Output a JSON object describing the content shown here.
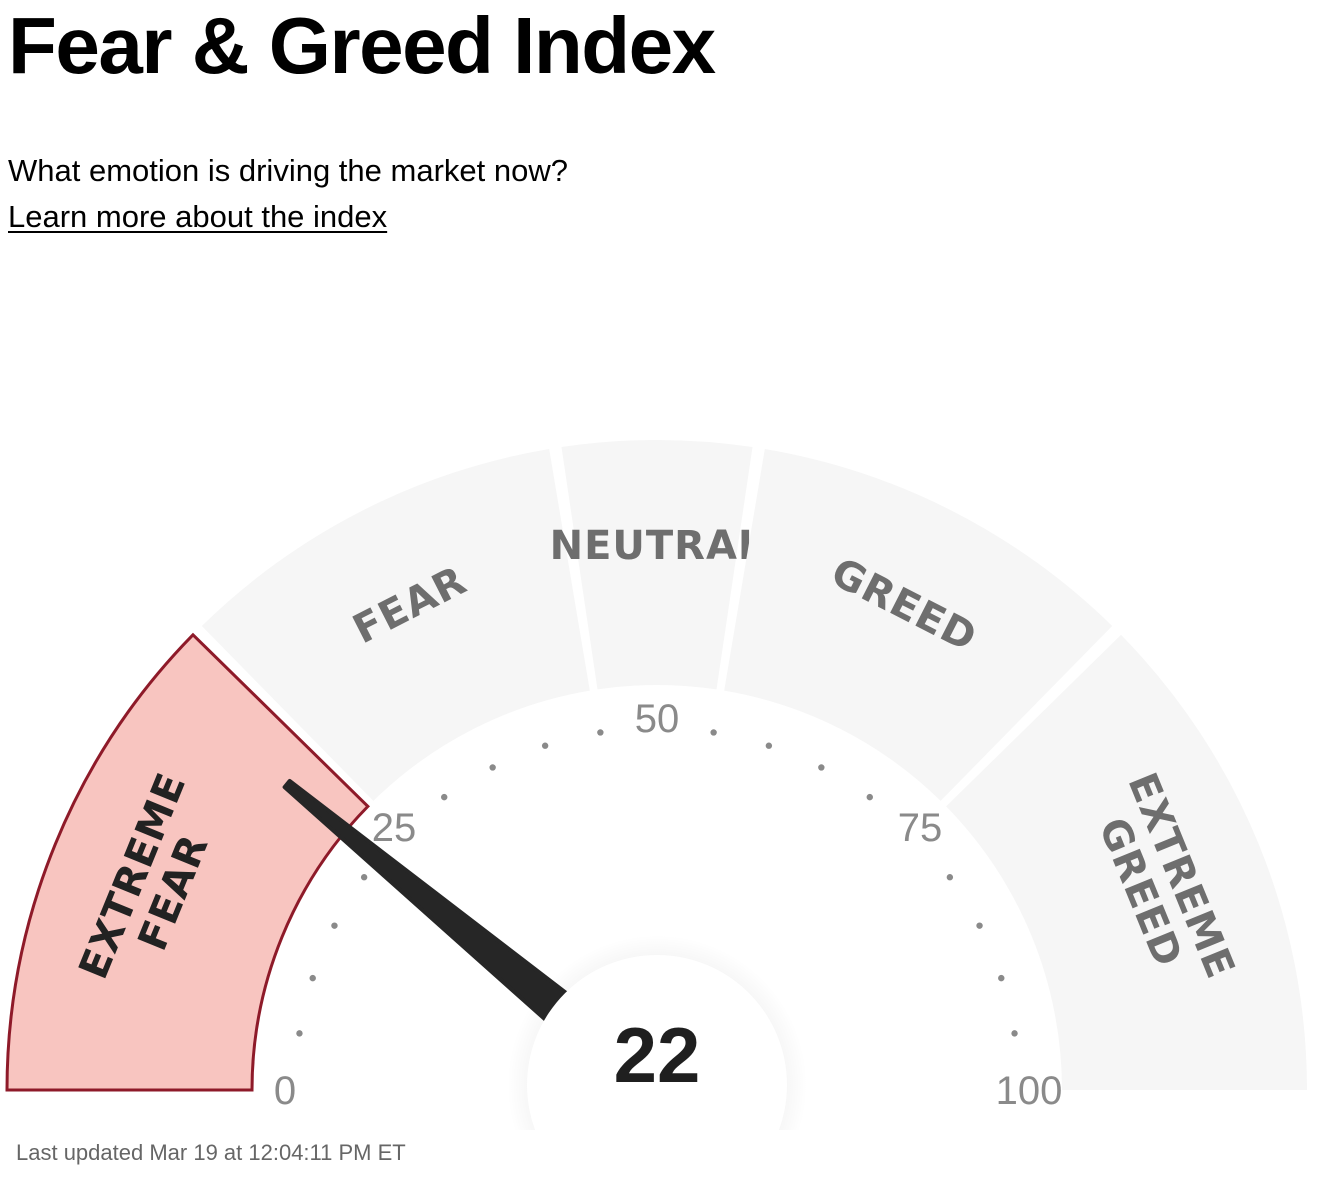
{
  "header": {
    "title": "Fear & Greed Index",
    "subtitle": "What emotion is driving the market now?",
    "learn_more": "Learn more about the index"
  },
  "gauge": {
    "value": 22,
    "value_text": "22",
    "min": 0,
    "max": 100,
    "zones": [
      {
        "key": "extreme-fear",
        "lines": [
          "EXTREME",
          "FEAR"
        ],
        "from": 0,
        "to": 25,
        "active": true
      },
      {
        "key": "fear",
        "lines": [
          "FEAR"
        ],
        "from": 25,
        "to": 45,
        "active": false
      },
      {
        "key": "neutral",
        "lines": [
          "NEUTRAL"
        ],
        "from": 45,
        "to": 55,
        "active": false
      },
      {
        "key": "greed",
        "lines": [
          "GREED"
        ],
        "from": 55,
        "to": 75,
        "active": false
      },
      {
        "key": "extreme-greed",
        "lines": [
          "EXTREME",
          "GREED"
        ],
        "from": 75,
        "to": 100,
        "active": false
      }
    ],
    "tick_labels": [
      "0",
      "25",
      "50",
      "75",
      "100"
    ],
    "colors": {
      "zone_inactive": "#f6f6f6",
      "zone_active_fill": "#f8c5c0",
      "zone_active_stroke": "#8e1a29",
      "zone_text_inactive": "#6e6e6e",
      "zone_text_active": "#222222",
      "needle": "#262626",
      "tick": "#8a8a8a"
    }
  },
  "footer": {
    "last_updated": "Last updated Mar 19 at 12:04:11 PM ET"
  }
}
